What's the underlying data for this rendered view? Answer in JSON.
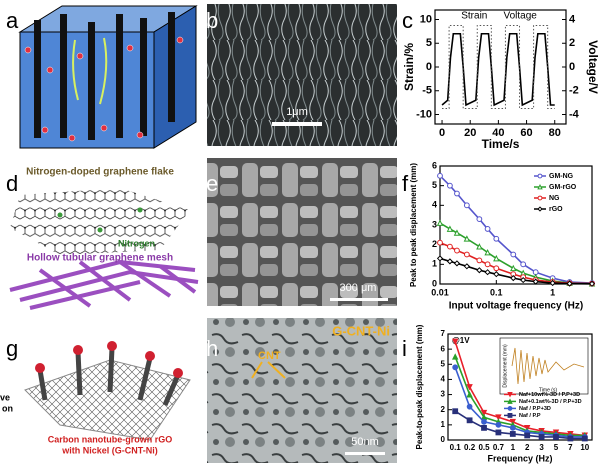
{
  "figure": {
    "panel_labels": [
      "a",
      "b",
      "c",
      "d",
      "e",
      "f",
      "g",
      "h",
      "i"
    ],
    "b": {
      "scale_bar": "1μm"
    },
    "d": {
      "top_caption": "Nitrogen-doped graphene flake",
      "dopant": "Nitrogen",
      "bottom_caption": "Hollow tubular graphene mesh"
    },
    "e": {
      "scale_bar": "300 μm"
    },
    "g": {
      "caption": [
        "Carbon nanotube-grown rGO",
        "with Nickel (G-CNT-Ni)"
      ],
      "cut_text": [
        "ve",
        "on"
      ]
    },
    "h": {
      "material": "G-CNT-Ni",
      "feature": "CNT",
      "scale_bar": "50nm"
    }
  },
  "chart_data": [
    {
      "type": "line",
      "xlabel": "Time/s",
      "ylabel": "Strain/%",
      "y2label": "Voltage/V",
      "xlim": [
        -5,
        88
      ],
      "xticks": [
        0,
        20,
        40,
        60,
        80
      ],
      "ylim": [
        -12,
        12
      ],
      "yticks": [
        -10,
        -5,
        0,
        5,
        10
      ],
      "y2lim": [
        -4.8,
        4.8
      ],
      "y2ticks": [
        -4,
        -2,
        0,
        2,
        4
      ],
      "legend": "top",
      "series": [
        {
          "name": "Strain",
          "color": "#000000",
          "line_style": "solid",
          "x": [
            0,
            4,
            6,
            8,
            13,
            15,
            17,
            24,
            26,
            28,
            33,
            35,
            37,
            44,
            46,
            48,
            53,
            55,
            57,
            64,
            66,
            68,
            73,
            75,
            77,
            80
          ],
          "values": [
            -8,
            -7,
            2,
            7,
            7,
            0,
            -8,
            -7,
            2,
            7,
            7,
            0,
            -8,
            -7,
            2,
            7,
            7,
            0,
            -8,
            -7,
            2,
            7,
            7,
            0,
            -8,
            -8
          ]
        },
        {
          "name": "Voltage",
          "color": "#555555",
          "line_style": "dotted",
          "axis": "y2",
          "x": [
            0,
            5,
            5,
            15,
            15,
            25,
            25,
            35,
            35,
            45,
            45,
            55,
            55,
            65,
            65,
            75,
            75,
            80
          ],
          "values": [
            -3.5,
            -3.5,
            3.5,
            3.5,
            -3.5,
            -3.5,
            3.5,
            3.5,
            -3.5,
            -3.5,
            3.5,
            3.5,
            -3.5,
            -3.5,
            3.5,
            3.5,
            -3.5,
            -3.5
          ]
        }
      ]
    },
    {
      "type": "line",
      "log_x": true,
      "xlabel": "Input voltage frequency (Hz)",
      "ylabel": "Peak to peak displacement (mm)",
      "xlim": [
        0.01,
        5
      ],
      "xticks": [
        0.01,
        0.1,
        1
      ],
      "ylim": [
        0,
        6
      ],
      "yticks": [
        0,
        1,
        2,
        3,
        4,
        5,
        6
      ],
      "legend": "upper right",
      "marker_fill": "hollow",
      "x": [
        0.01,
        0.015,
        0.02,
        0.03,
        0.05,
        0.07,
        0.1,
        0.2,
        0.3,
        0.5,
        1,
        2,
        5
      ],
      "series": [
        {
          "name": "GM-NG",
          "color": "#5555cc",
          "marker": "circle",
          "values": [
            5.5,
            5.0,
            4.6,
            4.0,
            3.3,
            2.8,
            2.3,
            1.5,
            1.0,
            0.6,
            0.3,
            0.1,
            0.05
          ]
        },
        {
          "name": "GM-rGO",
          "color": "#2ca02c",
          "marker": "triangle-up",
          "values": [
            3.1,
            2.8,
            2.6,
            2.3,
            1.9,
            1.6,
            1.3,
            0.8,
            0.55,
            0.35,
            0.15,
            0.05,
            0.02
          ]
        },
        {
          "name": "NG",
          "color": "#e02020",
          "marker": "circle",
          "values": [
            2.1,
            1.9,
            1.7,
            1.5,
            1.2,
            1.0,
            0.8,
            0.5,
            0.35,
            0.2,
            0.1,
            0.04,
            0.02
          ]
        },
        {
          "name": "rGO",
          "color": "#000000",
          "marker": "diamond",
          "values": [
            1.3,
            1.15,
            1.05,
            0.9,
            0.7,
            0.6,
            0.5,
            0.3,
            0.2,
            0.12,
            0.05,
            0.02,
            0.01
          ]
        }
      ]
    },
    {
      "type": "line",
      "xlabel": "Frequency (Hz)",
      "ylabel": "Peak-to-peak displacement (mm)",
      "annotation": "@1V",
      "categories": [
        "0.1",
        "0.2",
        "0.5",
        "0.7",
        "1",
        "2",
        "3",
        "5",
        "7",
        "10"
      ],
      "ylim": [
        0,
        7
      ],
      "yticks": [
        0,
        1,
        2,
        3,
        4,
        5,
        6,
        7
      ],
      "legend": "center right",
      "marker_fill": "solid",
      "inset": {
        "xlabel": "Time (s)",
        "ylabel": "Displacement (mm)"
      },
      "series": [
        {
          "name": "Naf+10wt%-3D / P.P+3D",
          "color": "#e8202a",
          "marker": "triangle-down",
          "values": [
            6.5,
            3.5,
            1.8,
            1.5,
            1.2,
            0.8,
            0.6,
            0.5,
            0.4,
            0.3
          ]
        },
        {
          "name": "Naf+0.1wt%-3D / P.P+3D",
          "color": "#2aa02a",
          "marker": "triangle-up",
          "values": [
            5.5,
            3.0,
            1.5,
            1.2,
            1.0,
            0.6,
            0.5,
            0.4,
            0.3,
            0.3
          ]
        },
        {
          "name": "Naf / P.P+3D",
          "color": "#3a5fd0",
          "marker": "circle",
          "values": [
            4.8,
            2.2,
            1.2,
            1.0,
            0.8,
            0.5,
            0.4,
            0.3,
            0.2,
            0.2
          ]
        },
        {
          "name": "Naf / P.P",
          "color": "#28307a",
          "marker": "square",
          "values": [
            1.9,
            1.3,
            0.8,
            0.5,
            0.4,
            0.3,
            0.2,
            0.2,
            0.1,
            0.1
          ]
        }
      ]
    }
  ]
}
